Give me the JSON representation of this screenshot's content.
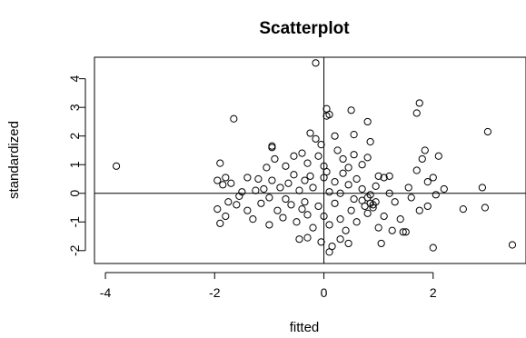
{
  "chart_data": {
    "type": "scatter",
    "title": "Scatterplot",
    "xlabel": "fitted",
    "ylabel": "standardized",
    "xlim": [
      -4.2,
      3.7
    ],
    "ylim": [
      -2.45,
      4.75
    ],
    "xticks": [
      -4,
      -2,
      0,
      2
    ],
    "yticks": [
      -2,
      -1,
      0,
      1,
      2,
      3,
      4
    ],
    "reference_lines": {
      "h": 0,
      "v": 0
    },
    "grid": false,
    "series": [
      {
        "points": [
          [
            -3.8,
            0.95
          ],
          [
            -1.65,
            2.6
          ],
          [
            -0.15,
            4.55
          ],
          [
            0.05,
            2.95
          ],
          [
            0.1,
            2.75
          ],
          [
            1.75,
            3.15
          ],
          [
            1.7,
            2.8
          ],
          [
            3.0,
            2.15
          ],
          [
            -0.95,
            1.65
          ],
          [
            -0.95,
            1.6
          ],
          [
            0.05,
            2.7
          ],
          [
            0.5,
            2.9
          ],
          [
            0.8,
            2.5
          ],
          [
            -0.25,
            2.1
          ],
          [
            -0.15,
            1.9
          ],
          [
            0.2,
            2.0
          ],
          [
            0.55,
            2.05
          ],
          [
            0.85,
            1.8
          ],
          [
            -0.05,
            1.7
          ],
          [
            1.85,
            1.5
          ],
          [
            -1.9,
            1.05
          ],
          [
            -1.8,
            0.55
          ],
          [
            -1.95,
            0.45
          ],
          [
            -1.85,
            0.3
          ],
          [
            -1.7,
            0.35
          ],
          [
            -1.4,
            0.55
          ],
          [
            -1.2,
            0.5
          ],
          [
            -1.05,
            0.9
          ],
          [
            -0.9,
            1.2
          ],
          [
            -0.7,
            0.95
          ],
          [
            -0.55,
            1.3
          ],
          [
            -0.4,
            1.4
          ],
          [
            -0.3,
            1.05
          ],
          [
            -0.1,
            1.3
          ],
          [
            0.0,
            0.95
          ],
          [
            0.25,
            1.5
          ],
          [
            0.35,
            1.2
          ],
          [
            0.45,
            0.9
          ],
          [
            0.55,
            1.35
          ],
          [
            0.7,
            1.0
          ],
          [
            0.8,
            1.25
          ],
          [
            1.0,
            0.6
          ],
          [
            1.1,
            0.55
          ],
          [
            1.2,
            0.6
          ],
          [
            1.55,
            0.2
          ],
          [
            1.7,
            0.8
          ],
          [
            1.8,
            1.2
          ],
          [
            1.9,
            0.4
          ],
          [
            2.1,
            1.3
          ],
          [
            2.0,
            0.55
          ],
          [
            2.2,
            0.15
          ],
          [
            2.05,
            -0.05
          ],
          [
            2.9,
            0.2
          ],
          [
            2.95,
            -0.5
          ],
          [
            2.55,
            -0.55
          ],
          [
            -1.95,
            -0.55
          ],
          [
            -1.8,
            -0.8
          ],
          [
            -1.9,
            -1.05
          ],
          [
            -1.75,
            -0.3
          ],
          [
            -1.55,
            -0.1
          ],
          [
            -1.4,
            -0.6
          ],
          [
            -1.3,
            -0.9
          ],
          [
            -1.15,
            -0.35
          ],
          [
            -1.0,
            -1.1
          ],
          [
            -0.85,
            -0.6
          ],
          [
            -0.75,
            -0.85
          ],
          [
            -0.6,
            -0.4
          ],
          [
            -0.5,
            -1.0
          ],
          [
            -0.4,
            -0.55
          ],
          [
            -0.3,
            -0.75
          ],
          [
            -0.2,
            -1.2
          ],
          [
            -0.1,
            -0.45
          ],
          [
            0.0,
            -0.8
          ],
          [
            0.1,
            -1.1
          ],
          [
            0.2,
            -0.35
          ],
          [
            0.3,
            -0.9
          ],
          [
            0.4,
            -1.3
          ],
          [
            0.5,
            -0.6
          ],
          [
            0.6,
            -1.0
          ],
          [
            0.7,
            -0.25
          ],
          [
            0.8,
            -0.7
          ],
          [
            0.9,
            -0.5
          ],
          [
            1.0,
            -1.2
          ],
          [
            1.1,
            -0.8
          ],
          [
            1.3,
            -0.3
          ],
          [
            1.4,
            -0.9
          ],
          [
            1.5,
            -1.35
          ],
          [
            1.6,
            -0.15
          ],
          [
            1.75,
            -0.6
          ],
          [
            1.9,
            -0.45
          ],
          [
            -0.45,
            -1.6
          ],
          [
            -0.3,
            -1.55
          ],
          [
            -0.05,
            -1.7
          ],
          [
            0.15,
            -1.85
          ],
          [
            0.3,
            -1.6
          ],
          [
            0.45,
            -1.75
          ],
          [
            0.1,
            -2.05
          ],
          [
            1.05,
            -1.75
          ],
          [
            1.25,
            -1.3
          ],
          [
            1.45,
            -1.35
          ],
          [
            2.0,
            -1.9
          ],
          [
            3.45,
            -1.8
          ],
          [
            -1.5,
            0.05
          ],
          [
            -1.25,
            0.1
          ],
          [
            -1.0,
            -0.15
          ],
          [
            -0.8,
            0.2
          ],
          [
            -0.65,
            0.35
          ],
          [
            -0.45,
            0.1
          ],
          [
            -0.35,
            0.45
          ],
          [
            -0.2,
            0.2
          ],
          [
            0.0,
            0.55
          ],
          [
            0.1,
            0.05
          ],
          [
            0.2,
            0.4
          ],
          [
            0.3,
            0.0
          ],
          [
            0.45,
            0.3
          ],
          [
            0.6,
            0.5
          ],
          [
            0.7,
            0.15
          ],
          [
            0.85,
            -0.05
          ],
          [
            0.95,
            0.25
          ],
          [
            1.2,
            0.0
          ],
          [
            0.85,
            -0.35
          ],
          [
            0.9,
            -0.4
          ],
          [
            0.95,
            -0.3
          ],
          [
            0.8,
            -0.15
          ],
          [
            0.75,
            -0.45
          ],
          [
            -0.25,
            0.6
          ],
          [
            0.05,
            0.75
          ],
          [
            0.35,
            0.7
          ],
          [
            -0.55,
            0.65
          ],
          [
            -0.95,
            0.45
          ],
          [
            -1.1,
            0.15
          ],
          [
            -1.6,
            -0.4
          ],
          [
            -0.7,
            -0.2
          ],
          [
            -0.35,
            -0.3
          ],
          [
            0.55,
            -0.2
          ]
        ]
      }
    ]
  }
}
